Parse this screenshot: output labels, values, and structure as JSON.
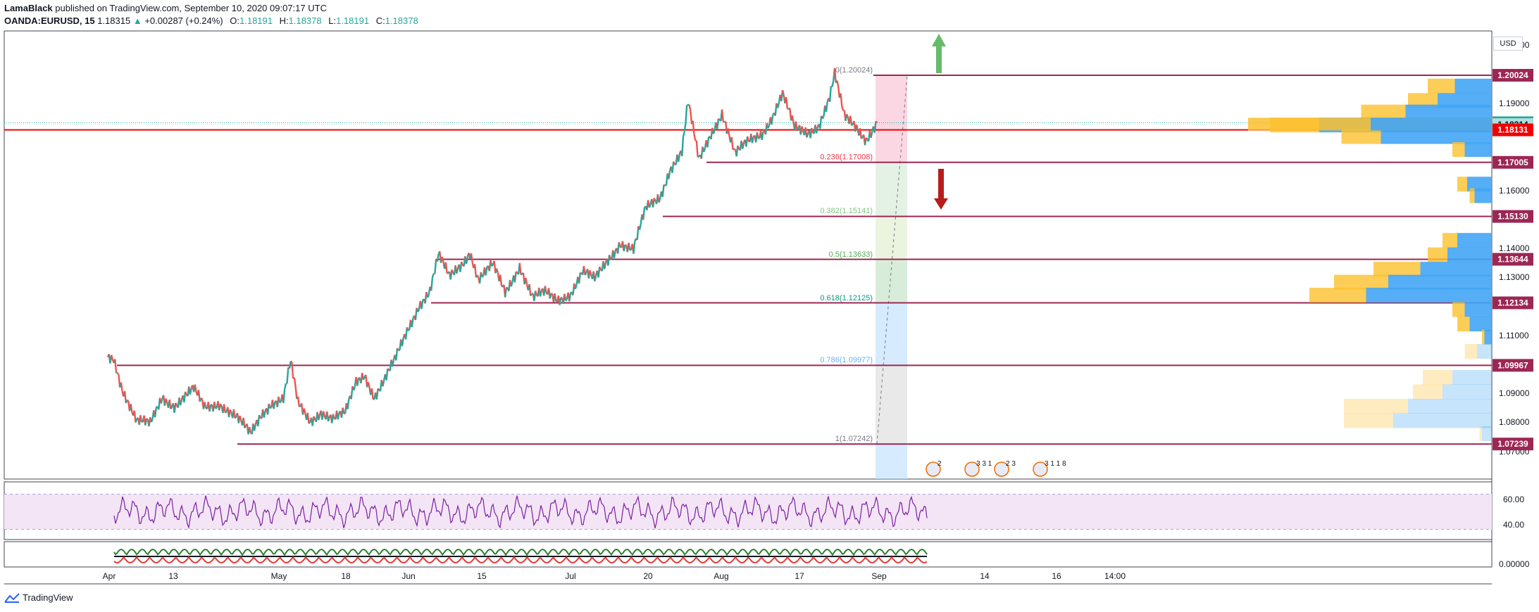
{
  "header": {
    "author": "LamaBlack",
    "published_text": "published on TradingView.com, September 10, 2020 09:07:17 UTC",
    "symbol": "OANDA:EURUSD, 15",
    "last": "1.18315",
    "change": "+0.00287 (+0.24%)",
    "open_label": "O:",
    "open": "1.18191",
    "high_label": "H:",
    "high": "1.18378",
    "low_label": "L:",
    "low": "1.18191",
    "close_label": "C:",
    "close": "1.18378"
  },
  "currency_badge": "USD",
  "brand": {
    "name": "TradingView"
  },
  "chart_data": {
    "type": "line",
    "description_series": "EURUSD 15-minute candles, approximate close path",
    "x_tick_labels": [
      "Apr",
      "13",
      "May",
      "18",
      "Jun",
      "15",
      "Jul",
      "20",
      "Aug",
      "17",
      "Sep",
      "14",
      "16",
      "14:00"
    ],
    "y_tick_labels": [
      "1.20000",
      "1.19000",
      "1.18000",
      "1.16000",
      "1.14000",
      "1.13000",
      "1.11000",
      "1.09000",
      "1.08000",
      "1.07000"
    ],
    "ylim": [
      1.0674,
      1.2105
    ],
    "price_path": [
      {
        "t": 0.0,
        "p": 1.1025
      },
      {
        "t": 0.5,
        "p": 1.1025
      },
      {
        "t": 1.2,
        "p": 1.092
      },
      {
        "t": 2.4,
        "p": 1.08
      },
      {
        "t": 3.5,
        "p": 1.079
      },
      {
        "t": 4.5,
        "p": 1.089
      },
      {
        "t": 5.5,
        "p": 1.086
      },
      {
        "t": 6.2,
        "p": 1.088
      },
      {
        "t": 7.1,
        "p": 1.091
      },
      {
        "t": 8.0,
        "p": 1.085
      },
      {
        "t": 9.2,
        "p": 1.087
      },
      {
        "t": 10.5,
        "p": 1.082
      },
      {
        "t": 11.8,
        "p": 1.0755
      },
      {
        "t": 12.7,
        "p": 1.083
      },
      {
        "t": 13.5,
        "p": 1.087
      },
      {
        "t": 14.5,
        "p": 1.088
      },
      {
        "t": 15.1,
        "p": 1.1005
      },
      {
        "t": 15.7,
        "p": 1.086
      },
      {
        "t": 16.7,
        "p": 1.0805
      },
      {
        "t": 17.6,
        "p": 1.084
      },
      {
        "t": 18.6,
        "p": 1.081
      },
      {
        "t": 19.6,
        "p": 1.0825
      },
      {
        "t": 20.5,
        "p": 1.094
      },
      {
        "t": 21.2,
        "p": 1.097
      },
      {
        "t": 22.0,
        "p": 1.089
      },
      {
        "t": 22.8,
        "p": 1.094
      },
      {
        "t": 23.7,
        "p": 1.101
      },
      {
        "t": 24.8,
        "p": 1.1125
      },
      {
        "t": 25.7,
        "p": 1.121
      },
      {
        "t": 26.6,
        "p": 1.1255
      },
      {
        "t": 27.3,
        "p": 1.1375
      },
      {
        "t": 28.2,
        "p": 1.13
      },
      {
        "t": 29.3,
        "p": 1.1355
      },
      {
        "t": 29.9,
        "p": 1.1395
      },
      {
        "t": 30.6,
        "p": 1.1295
      },
      {
        "t": 31.8,
        "p": 1.134
      },
      {
        "t": 32.8,
        "p": 1.125
      },
      {
        "t": 34.0,
        "p": 1.1345
      },
      {
        "t": 35.1,
        "p": 1.123
      },
      {
        "t": 36.1,
        "p": 1.1245
      },
      {
        "t": 37.1,
        "p": 1.1225
      },
      {
        "t": 38.2,
        "p": 1.125
      },
      {
        "t": 39.2,
        "p": 1.132
      },
      {
        "t": 40.2,
        "p": 1.129
      },
      {
        "t": 41.3,
        "p": 1.1365
      },
      {
        "t": 42.3,
        "p": 1.1425
      },
      {
        "t": 43.4,
        "p": 1.1395
      },
      {
        "t": 44.4,
        "p": 1.1535
      },
      {
        "t": 45.6,
        "p": 1.1585
      },
      {
        "t": 46.4,
        "p": 1.168
      },
      {
        "t": 47.4,
        "p": 1.1735
      },
      {
        "t": 47.9,
        "p": 1.1905
      },
      {
        "t": 48.8,
        "p": 1.1705
      },
      {
        "t": 49.8,
        "p": 1.1805
      },
      {
        "t": 50.7,
        "p": 1.1875
      },
      {
        "t": 51.8,
        "p": 1.1725
      },
      {
        "t": 53.0,
        "p": 1.1775
      },
      {
        "t": 54.0,
        "p": 1.1805
      },
      {
        "t": 54.9,
        "p": 1.1865
      },
      {
        "t": 55.7,
        "p": 1.1935
      },
      {
        "t": 56.7,
        "p": 1.1815
      },
      {
        "t": 57.8,
        "p": 1.1805
      },
      {
        "t": 58.7,
        "p": 1.1835
      },
      {
        "t": 59.6,
        "p": 1.1925
      },
      {
        "t": 60.0,
        "p": 1.2002
      },
      {
        "t": 60.8,
        "p": 1.1855
      },
      {
        "t": 61.8,
        "p": 1.1825
      },
      {
        "t": 62.6,
        "p": 1.1785
      },
      {
        "t": 63.5,
        "p": 1.1838
      }
    ],
    "horizontal_levels": [
      {
        "label": "1.20024",
        "value": 1.20024,
        "color": "#9c2754"
      },
      {
        "label": "1.18378",
        "value": 1.18378,
        "color": "#26a69a"
      },
      {
        "label": "1.18314",
        "value": 1.18314,
        "color": "#b2dfdb"
      },
      {
        "label": "1.18131",
        "value": 1.18131,
        "color": "#f00000"
      },
      {
        "label": "1.17005",
        "value": 1.17005,
        "color": "#9c2754"
      },
      {
        "label": "1.15130",
        "value": 1.1513,
        "color": "#9c2754"
      },
      {
        "label": "1.13644",
        "value": 1.13644,
        "color": "#9c2754"
      },
      {
        "label": "1.12134",
        "value": 1.12134,
        "color": "#9c2754"
      },
      {
        "label": "1.09967",
        "value": 1.09967,
        "color": "#9c2754"
      },
      {
        "label": "1.07239",
        "value": 1.07239,
        "color": "#9c2754"
      }
    ],
    "fibonacci": [
      {
        "label": "0(1.20024)",
        "value": 1.20024,
        "color": "#787b86"
      },
      {
        "label": "0.236(1.17008)",
        "value": 1.17008,
        "color": "#f23645"
      },
      {
        "label": "0.382(1.15141)",
        "value": 1.15141,
        "color": "#81c784"
      },
      {
        "label": "0.5(1.13633)",
        "value": 1.13633,
        "color": "#4caf50"
      },
      {
        "label": "0.618(1.12125)",
        "value": 1.12125,
        "color": "#089981"
      },
      {
        "label": "0.786(1.09977)",
        "value": 1.09977,
        "color": "#64b5f6"
      },
      {
        "label": "1(1.07242)",
        "value": 1.07242,
        "color": "#787b86"
      }
    ],
    "volume_profile": [
      {
        "price": 1.1965,
        "buy": 0.11,
        "sell": 0.15
      },
      {
        "price": 1.1915,
        "buy": 0.12,
        "sell": 0.22
      },
      {
        "price": 1.1875,
        "buy": 0.18,
        "sell": 0.35
      },
      {
        "price": 1.183,
        "buy": 0.2,
        "sell": 0.7
      },
      {
        "price": 1.179,
        "buy": 0.16,
        "sell": 0.45
      },
      {
        "price": 1.1745,
        "buy": 0.05,
        "sell": 0.11
      },
      {
        "price": 1.1625,
        "buy": 0.04,
        "sell": 0.1
      },
      {
        "price": 1.1585,
        "buy": 0.02,
        "sell": 0.07
      },
      {
        "price": 1.143,
        "buy": 0.06,
        "sell": 0.14
      },
      {
        "price": 1.138,
        "buy": 0.08,
        "sell": 0.18
      },
      {
        "price": 1.133,
        "buy": 0.19,
        "sell": 0.29
      },
      {
        "price": 1.1285,
        "buy": 0.22,
        "sell": 0.42
      },
      {
        "price": 1.124,
        "buy": 0.23,
        "sell": 0.51
      },
      {
        "price": 1.119,
        "buy": 0.05,
        "sell": 0.11
      },
      {
        "price": 1.114,
        "buy": 0.05,
        "sell": 0.09
      },
      {
        "price": 1.1095,
        "buy": 0.01,
        "sell": 0.03
      },
      {
        "price": 1.1045,
        "buy": 0.05,
        "sell": 0.06
      },
      {
        "price": 1.0955,
        "buy": 0.12,
        "sell": 0.16
      },
      {
        "price": 1.0905,
        "buy": 0.12,
        "sell": 0.2
      },
      {
        "price": 1.0855,
        "buy": 0.26,
        "sell": 0.34
      },
      {
        "price": 1.0805,
        "buy": 0.2,
        "sell": 0.4
      },
      {
        "price": 1.076,
        "buy": 0.01,
        "sell": 0.04
      }
    ],
    "event_markers": [
      "2",
      "3 3 1",
      "2 3",
      "3 1 1 8"
    ],
    "rsi": {
      "y_tick_labels": [
        "60.00",
        "40.00"
      ],
      "upper_band": 70,
      "lower_band": 30,
      "ylim": [
        20,
        80
      ]
    },
    "oscillator": {
      "y_tick_labels": [
        "0.00000"
      ]
    },
    "colors": {
      "up": "#26a69a",
      "down": "#ef5350",
      "level": "#9c2754",
      "rsi_line": "#7b1fa2",
      "rsi_fill": "#f3e5f5",
      "vp_buy": "#fbc02d",
      "vp_sell": "#42a5f5",
      "arrow_up": "#66bb6a",
      "arrow_down": "#b71c1c"
    }
  }
}
